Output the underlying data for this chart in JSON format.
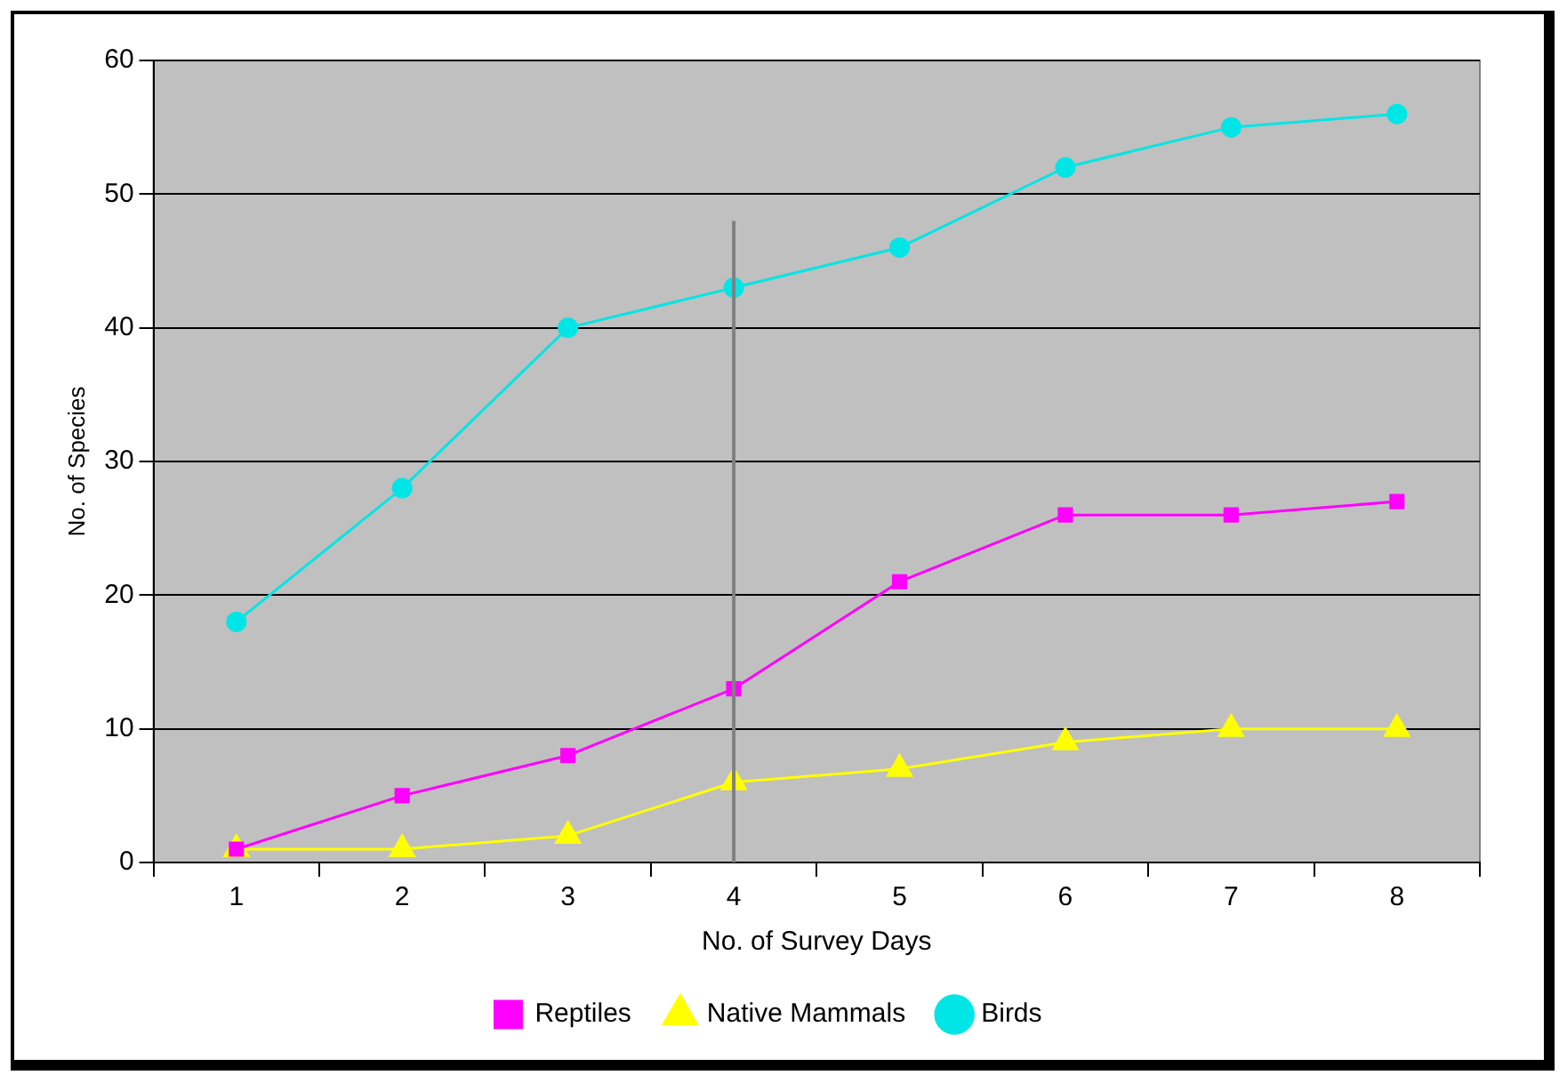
{
  "chart_data": {
    "type": "line",
    "xlabel": "No. of Survey Days",
    "ylabel": "No. of Species",
    "categories": [
      "1",
      "2",
      "3",
      "4",
      "5",
      "6",
      "7",
      "8"
    ],
    "series": [
      {
        "name": "Reptiles",
        "color": "#ff00ff",
        "marker": "square",
        "values": [
          1,
          5,
          8,
          13,
          21,
          26,
          26,
          27
        ]
      },
      {
        "name": "Native Mammals",
        "color": "#ffff00",
        "marker": "triangle",
        "values": [
          1,
          1,
          2,
          6,
          7,
          9,
          10,
          10
        ]
      },
      {
        "name": "Birds",
        "color": "#00e5e5",
        "marker": "circle",
        "values": [
          18,
          28,
          40,
          43,
          46,
          52,
          55,
          56
        ]
      }
    ],
    "ylim": [
      0,
      60
    ],
    "yticks": [
      0,
      10,
      20,
      30,
      40,
      50,
      60
    ],
    "grid": "y",
    "legend": "bottom",
    "ref_lines": [
      {
        "axis": "x",
        "value": "4",
        "color": "#808080"
      }
    ]
  }
}
